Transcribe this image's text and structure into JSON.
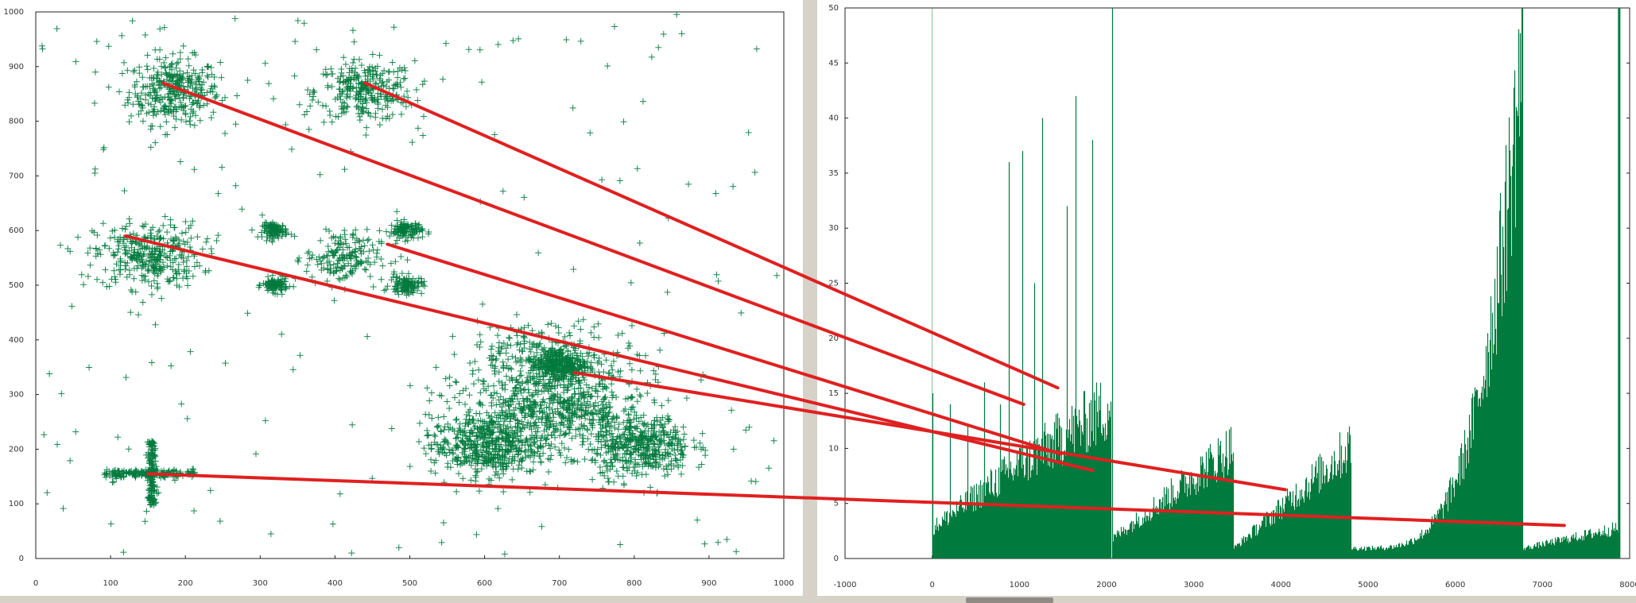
{
  "colors": {
    "series": "#007a3d",
    "annotation": "#e02020",
    "axis": "#222222"
  },
  "chart_data": [
    {
      "type": "scatter",
      "marker": "plus",
      "xlim": [
        0,
        1000
      ],
      "ylim": [
        0,
        1000
      ],
      "xticks": [
        "0",
        "100",
        "200",
        "300",
        "400",
        "500",
        "600",
        "700",
        "800",
        "900",
        "1000"
      ],
      "yticks": [
        "0",
        "100",
        "200",
        "300",
        "400",
        "500",
        "600",
        "700",
        "800",
        "900",
        "1000"
      ],
      "grid": false,
      "clusters": [
        {
          "center": [
            185,
            855
          ],
          "spread": [
            55,
            55
          ],
          "count": 350
        },
        {
          "center": [
            440,
            855
          ],
          "spread": [
            60,
            50
          ],
          "count": 300
        },
        {
          "center": [
            150,
            555
          ],
          "spread": [
            65,
            55
          ],
          "count": 350
        },
        {
          "center": [
            320,
            600
          ],
          "spread": [
            15,
            12
          ],
          "count": 110
        },
        {
          "center": [
            495,
            600
          ],
          "spread": [
            20,
            15
          ],
          "count": 110
        },
        {
          "center": [
            320,
            500
          ],
          "spread": [
            15,
            12
          ],
          "count": 110
        },
        {
          "center": [
            495,
            500
          ],
          "spread": [
            20,
            15
          ],
          "count": 110
        },
        {
          "center": [
            410,
            550
          ],
          "spread": [
            45,
            45
          ],
          "count": 180
        },
        {
          "center": [
            700,
            355
          ],
          "spread": [
            35,
            30
          ],
          "count": 320
        },
        {
          "center": [
            600,
            205
          ],
          "spread": [
            65,
            50
          ],
          "count": 500
        },
        {
          "center": [
            810,
            205
          ],
          "spread": [
            60,
            50
          ],
          "count": 450
        },
        {
          "center": [
            690,
            270
          ],
          "spread": [
            110,
            70
          ],
          "count": 700
        },
        {
          "center": [
            690,
            370
          ],
          "spread": [
            110,
            55
          ],
          "count": 250
        }
      ],
      "cross": {
        "center": [
          155,
          155
        ],
        "horizontal_extent": [
          90,
          215
        ],
        "vertical_extent": [
          95,
          215
        ],
        "count": 320
      },
      "noise_count": 220
    },
    {
      "type": "bar",
      "xlim": [
        -1000,
        8000
      ],
      "ylim": [
        0,
        50
      ],
      "xticks": [
        "-1000",
        "0",
        "1000",
        "2000",
        "3000",
        "4000",
        "5000",
        "6000",
        "7000",
        "8000"
      ],
      "yticks": [
        "0",
        "5",
        "10",
        "15",
        "20",
        "25",
        "30",
        "35",
        "40",
        "45",
        "50"
      ],
      "grid": false,
      "description_segments": [
        {
          "x": [
            0,
            800
          ],
          "base": [
            3,
            8
          ],
          "spikes": [
            [
              0,
              15
            ],
            [
              200,
              14
            ],
            [
              400,
              12
            ],
            [
              600,
              16
            ],
            [
              780,
              14
            ]
          ]
        },
        {
          "x": [
            800,
            2050
          ],
          "base": [
            8,
            15
          ],
          "spikes": [
            [
              880,
              36
            ],
            [
              1030,
              37
            ],
            [
              1170,
              25
            ],
            [
              1260,
              40
            ],
            [
              1540,
              32
            ],
            [
              1640,
              42
            ],
            [
              1840,
              38
            ],
            [
              2060,
              50
            ]
          ]
        },
        {
          "x": [
            2070,
            3450
          ],
          "base": [
            2,
            11
          ]
        },
        {
          "x": [
            3460,
            4800
          ],
          "base": [
            1,
            11
          ]
        },
        {
          "x": [
            4810,
            6770
          ],
          "base": [
            1,
            50
          ]
        },
        {
          "x": [
            6780,
            7870
          ],
          "base": [
            1,
            3
          ]
        }
      ],
      "end_bar_x": 7880
    }
  ],
  "annotation_lines": [
    {
      "from": [
        170,
        870
      ],
      "to": [
        1050,
        280
      ]
    },
    {
      "from": [
        440,
        870
      ],
      "to": [
        1440,
        310
      ]
    },
    {
      "from": [
        120,
        590
      ],
      "to": [
        1840,
        160
      ]
    },
    {
      "from": [
        470,
        575
      ],
      "to": [
        1470,
        190
      ]
    },
    {
      "from": [
        720,
        340
      ],
      "to": [
        4050,
        125
      ]
    },
    {
      "from": [
        150,
        155
      ],
      "to": [
        7250,
        60
      ]
    }
  ]
}
